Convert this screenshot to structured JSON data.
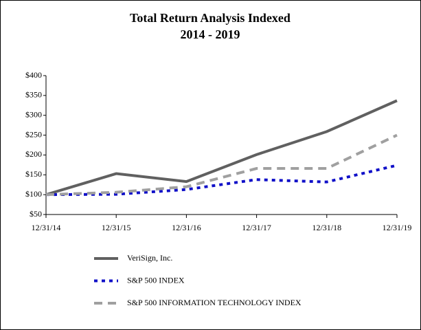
{
  "chart_data": {
    "type": "line",
    "title": "Total Return Analysis Indexed",
    "subtitle": "2014 - 2019",
    "categories": [
      "12/31/14",
      "12/31/15",
      "12/31/16",
      "12/31/17",
      "12/31/18",
      "12/31/19"
    ],
    "series": [
      {
        "name": "VeriSign, Inc.",
        "color": "#606060",
        "values": [
          100,
          153,
          133,
          201,
          259,
          337
        ]
      },
      {
        "name": "S&P 500 INDEX",
        "color": "#1010c8",
        "values": [
          100,
          101,
          113,
          138,
          132,
          174
        ]
      },
      {
        "name": "S&P 500 INFORMATION TECHNOLOGY INDEX",
        "color": "#a0a0a0",
        "values": [
          100,
          106,
          120,
          166,
          166,
          250
        ]
      }
    ],
    "ylim": [
      50,
      400
    ],
    "yticks": [
      {
        "value": 50,
        "label": "$50"
      },
      {
        "value": 100,
        "label": "$100"
      },
      {
        "value": 150,
        "label": "$150"
      },
      {
        "value": 200,
        "label": "$200"
      },
      {
        "value": 250,
        "label": "$250"
      },
      {
        "value": 300,
        "label": "$300"
      },
      {
        "value": 350,
        "label": "$350"
      },
      {
        "value": 400,
        "label": "$400"
      }
    ],
    "grid": false
  }
}
